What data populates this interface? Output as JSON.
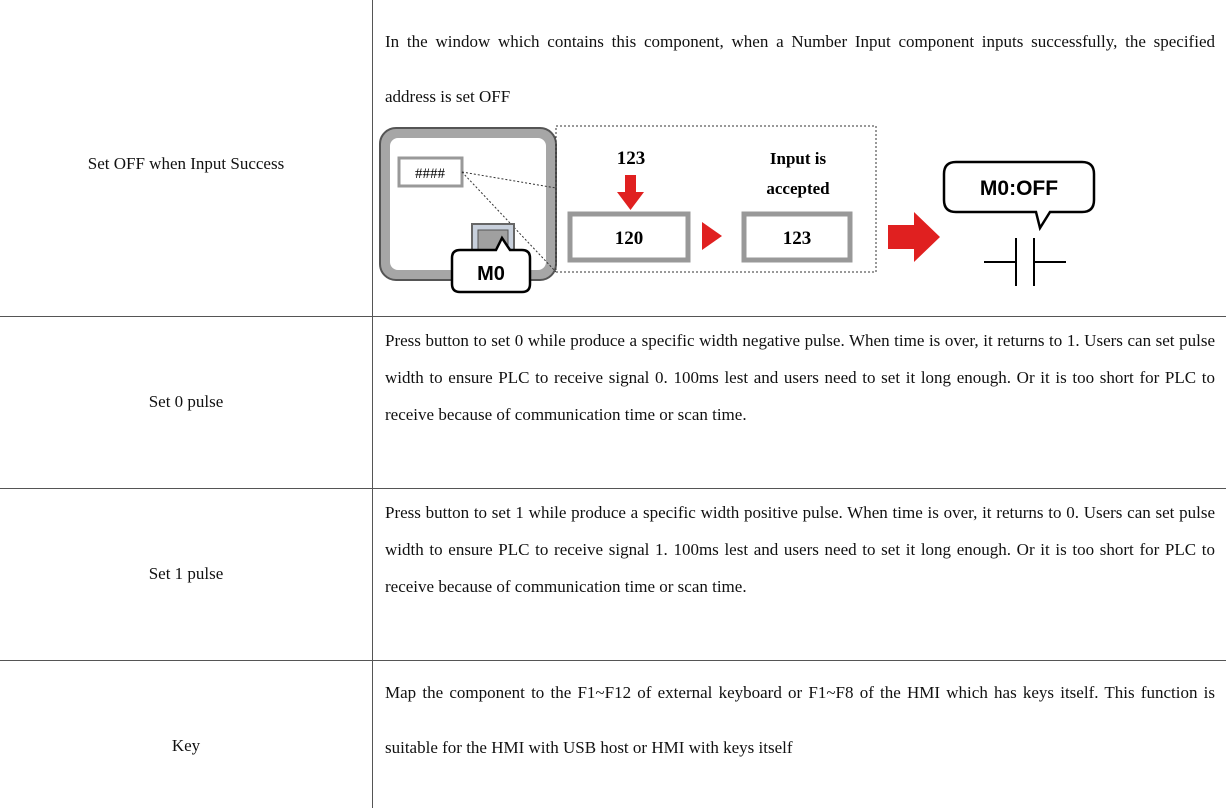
{
  "table": {
    "rows": [
      {
        "label": "Set OFF when Input Success",
        "description": "In the window which contains this component, when a Number Input component inputs successfully, the specified address is set OFF",
        "diagram": {
          "input_field": "####",
          "typed_value": "123",
          "old_value": "120",
          "accepted_line1": "Input is",
          "accepted_line2": "accepted",
          "new_value": "123",
          "button_address": "M0",
          "result": "M0:OFF"
        }
      },
      {
        "label": "Set 0 pulse",
        "description": "Press button to set 0 while produce a specific width negative pulse. When time is over, it returns to 1. Users can set pulse width to ensure PLC to receive signal 0. 100ms lest and users need to set it long enough. Or it is too short for PLC to receive because of communication time or scan time."
      },
      {
        "label": "Set 1 pulse",
        "description": "Press button to set 1 while produce a specific width positive pulse. When time is over, it returns to 0. Users can set pulse width to ensure PLC to receive signal 1. 100ms lest and users need to set it long enough. Or it is too short for PLC to receive because of communication time or scan time."
      },
      {
        "label": "Key",
        "description": "Map the component to the F1~F12 of external keyboard or F1~F8 of the HMI which has keys itself. This function is suitable for the HMI with USB host or HMI with keys itself"
      }
    ]
  }
}
